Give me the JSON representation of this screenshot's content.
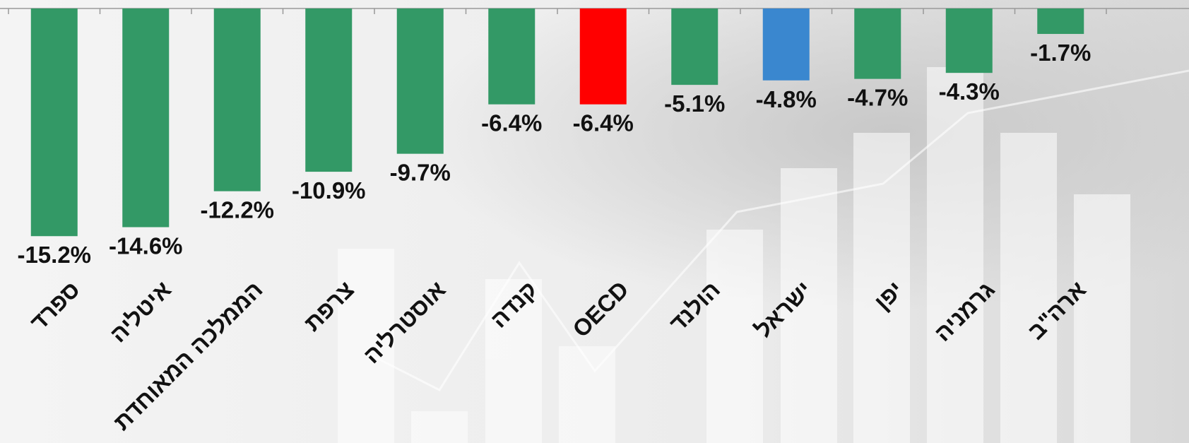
{
  "chart_data": {
    "type": "bar",
    "categories": [
      "ספרד",
      "איטליה",
      "הממלכה המאוחדת",
      "צרפת",
      "אוסטרליה",
      "קנדה",
      "OECD",
      "הולנד",
      "ישראל",
      "יפן",
      "גרמניה",
      "ארה\"ב"
    ],
    "values": [
      -15.2,
      -14.6,
      -12.2,
      -10.9,
      -9.7,
      -6.4,
      -6.4,
      -5.1,
      -4.8,
      -4.7,
      -4.3,
      -1.7
    ],
    "value_labels": [
      "-15.2%",
      "-14.6%",
      "-12.2%",
      "-10.9%",
      "-9.7%",
      "-6.4%",
      "-6.4%",
      "-5.1%",
      "-4.8%",
      "-4.7%",
      "-4.3%",
      "-1.7%"
    ],
    "colors": [
      "#339966",
      "#339966",
      "#339966",
      "#339966",
      "#339966",
      "#339966",
      "#ff0000",
      "#339966",
      "#3a87cf",
      "#339966",
      "#339966",
      "#339966"
    ],
    "ylim": [
      -20,
      0
    ]
  }
}
